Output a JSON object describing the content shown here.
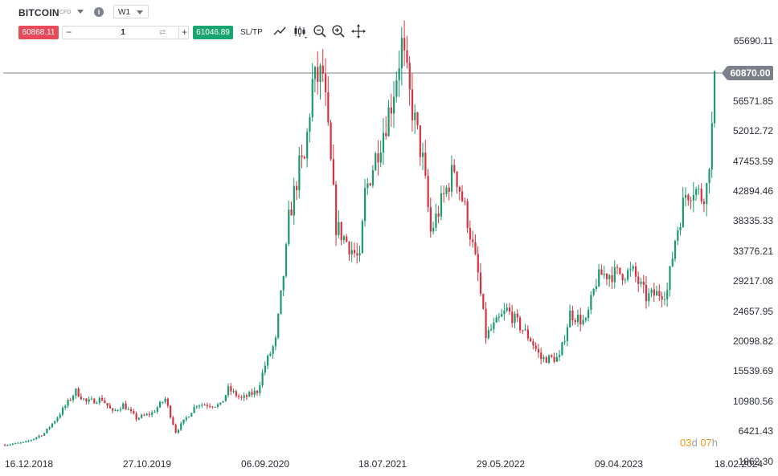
{
  "header": {
    "symbol": "BITCOIN",
    "instrument_type": "CFD",
    "timeframe": "W1",
    "sell_price": "60868.11",
    "buy_price": "61046.89",
    "quantity": "1",
    "sltp_label": "SL/TP",
    "minus_label": "−",
    "plus_label": "+",
    "swap_glyph": "⇄",
    "info_glyph": "i"
  },
  "toolbar_icons": [
    "line-trend-icon",
    "candlestick-type-icon",
    "zoom-out-icon",
    "zoom-in-icon",
    "crosshair-icon"
  ],
  "colors": {
    "up": "#1a9b6c",
    "down": "#d7323f",
    "sell": "#e84a5a",
    "buy": "#1aa46f",
    "countdown": "#f39c12"
  },
  "chart": {
    "current_price_label": "60870.00",
    "y_ticks": [
      "65690.11",
      "61130.98",
      "56571.85",
      "52012.72",
      "47453.59",
      "42894.46",
      "38335.33",
      "33776.21",
      "29217.08",
      "24657.95",
      "20098.82",
      "15539.69",
      "10980.56",
      "6421.43",
      "1862.30"
    ],
    "x_ticks": [
      "16.12.2018",
      "27.10.2019",
      "06.09.2020",
      "18.07.2021",
      "29.05.2022",
      "09.04.2023",
      "18.02.2024"
    ],
    "countdown": {
      "days": "03",
      "day_unit": "d",
      "hours": "07",
      "hour_unit": "h"
    }
  },
  "chart_data": {
    "type": "candlestick",
    "timeframe": "W1",
    "x_start": "16.12.2018",
    "x_end": "18.02.2024",
    "ylim": [
      1862.3,
      65690.11
    ],
    "current_price": 60870.0,
    "anchors": [
      [
        "16.12.2018",
        3200
      ],
      [
        "10.02.2019",
        3600
      ],
      [
        "31.03.2019",
        5000
      ],
      [
        "05.05.2019",
        7500
      ],
      [
        "23.06.2019",
        11500
      ],
      [
        "21.07.2019",
        9800
      ],
      [
        "01.09.2019",
        10300
      ],
      [
        "29.09.2019",
        8200
      ],
      [
        "27.10.2019",
        9400
      ],
      [
        "01.12.2019",
        7300
      ],
      [
        "12.01.2020",
        8100
      ],
      [
        "16.02.2020",
        10300
      ],
      [
        "15.03.2020",
        5200
      ],
      [
        "10.05.2020",
        9500
      ],
      [
        "12.07.2020",
        9300
      ],
      [
        "02.08.2020",
        11800
      ],
      [
        "06.09.2020",
        10300
      ],
      [
        "18.10.2020",
        11500
      ],
      [
        "08.11.2020",
        15500
      ],
      [
        "06.12.2020",
        19200
      ],
      [
        "03.01.2021",
        33000
      ],
      [
        "10.01.2021",
        38000
      ],
      [
        "07.02.2021",
        46000
      ],
      [
        "21.02.2021",
        47000
      ],
      [
        "14.03.2021",
        59000
      ],
      [
        "11.04.2021",
        60500
      ],
      [
        "16.05.2021",
        37000
      ],
      [
        "20.06.2021",
        34000
      ],
      [
        "18.07.2021",
        31500
      ],
      [
        "01.08.2021",
        42000
      ],
      [
        "05.09.2021",
        49000
      ],
      [
        "10.10.2021",
        56000
      ],
      [
        "07.11.2021",
        65000
      ],
      [
        "28.11.2021",
        57000
      ],
      [
        "02.01.2022",
        47000
      ],
      [
        "23.01.2022",
        36000
      ],
      [
        "27.03.2022",
        46000
      ],
      [
        "01.05.2022",
        38000
      ],
      [
        "29.05.2022",
        29500
      ],
      [
        "19.06.2022",
        20000
      ],
      [
        "14.08.2022",
        24000
      ],
      [
        "16.10.2022",
        19500
      ],
      [
        "13.11.2022",
        16500
      ],
      [
        "01.01.2023",
        16600
      ],
      [
        "29.01.2023",
        23500
      ],
      [
        "12.03.2023",
        22000
      ],
      [
        "09.04.2023",
        28500
      ],
      [
        "23.04.2023",
        29500
      ],
      [
        "16.07.2023",
        29800
      ],
      [
        "20.08.2023",
        26000
      ],
      [
        "15.10.2023",
        27000
      ],
      [
        "05.11.2023",
        35000
      ],
      [
        "03.12.2023",
        42000
      ],
      [
        "24.12.2023",
        43000
      ],
      [
        "14.01.2024",
        41500
      ],
      [
        "28.01.2024",
        43000
      ],
      [
        "11.02.2024",
        52000
      ],
      [
        "18.02.2024",
        60870
      ]
    ]
  }
}
